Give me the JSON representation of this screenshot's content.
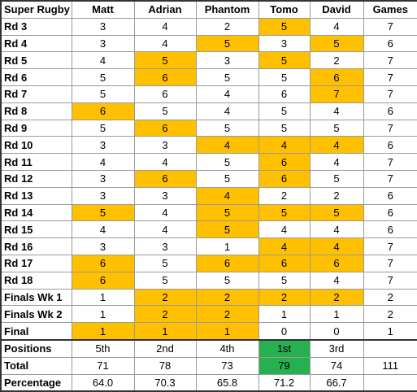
{
  "header": {
    "corner": "Super Rugby",
    "players": [
      "Matt",
      "Adrian",
      "Phantom",
      "Tomo",
      "David"
    ],
    "games": "Games"
  },
  "colors": {
    "highlight": "#ffc000",
    "winner": "#27b050"
  },
  "rounds": [
    {
      "label": "Rd 3",
      "scores": [
        "3",
        "4",
        "2",
        "5",
        "4"
      ],
      "hl": [
        false,
        false,
        false,
        true,
        false
      ],
      "games": "7"
    },
    {
      "label": "Rd 4",
      "scores": [
        "3",
        "4",
        "5",
        "3",
        "5"
      ],
      "hl": [
        false,
        false,
        true,
        false,
        true
      ],
      "games": "6"
    },
    {
      "label": "Rd 5",
      "scores": [
        "4",
        "5",
        "3",
        "5",
        "2"
      ],
      "hl": [
        false,
        true,
        false,
        true,
        false
      ],
      "games": "7"
    },
    {
      "label": "Rd 6",
      "scores": [
        "5",
        "6",
        "5",
        "5",
        "6"
      ],
      "hl": [
        false,
        true,
        false,
        false,
        true
      ],
      "games": "7"
    },
    {
      "label": "Rd 7",
      "scores": [
        "5",
        "6",
        "4",
        "6",
        "7"
      ],
      "hl": [
        false,
        false,
        false,
        false,
        true
      ],
      "games": "7"
    },
    {
      "label": "Rd 8",
      "scores": [
        "6",
        "5",
        "4",
        "5",
        "4"
      ],
      "hl": [
        true,
        false,
        false,
        false,
        false
      ],
      "games": "6"
    },
    {
      "label": "Rd 9",
      "scores": [
        "5",
        "6",
        "5",
        "5",
        "5"
      ],
      "hl": [
        false,
        true,
        false,
        false,
        false
      ],
      "games": "7"
    },
    {
      "label": "Rd 10",
      "scores": [
        "3",
        "3",
        "4",
        "4",
        "4"
      ],
      "hl": [
        false,
        false,
        true,
        true,
        true
      ],
      "games": "6"
    },
    {
      "label": "Rd 11",
      "scores": [
        "4",
        "4",
        "5",
        "6",
        "4"
      ],
      "hl": [
        false,
        false,
        false,
        true,
        false
      ],
      "games": "7"
    },
    {
      "label": "Rd 12",
      "scores": [
        "3",
        "6",
        "5",
        "6",
        "5"
      ],
      "hl": [
        false,
        true,
        false,
        true,
        false
      ],
      "games": "7"
    },
    {
      "label": "Rd 13",
      "scores": [
        "3",
        "3",
        "4",
        "2",
        "2"
      ],
      "hl": [
        false,
        false,
        true,
        false,
        false
      ],
      "games": "6"
    },
    {
      "label": "Rd 14",
      "scores": [
        "5",
        "4",
        "5",
        "5",
        "5"
      ],
      "hl": [
        true,
        false,
        true,
        true,
        true
      ],
      "games": "6"
    },
    {
      "label": "Rd 15",
      "scores": [
        "4",
        "4",
        "5",
        "4",
        "4"
      ],
      "hl": [
        false,
        false,
        true,
        false,
        false
      ],
      "games": "6"
    },
    {
      "label": "Rd 16",
      "scores": [
        "3",
        "3",
        "1",
        "4",
        "4"
      ],
      "hl": [
        false,
        false,
        false,
        true,
        true
      ],
      "games": "7"
    },
    {
      "label": "Rd 17",
      "scores": [
        "6",
        "5",
        "6",
        "6",
        "6"
      ],
      "hl": [
        true,
        false,
        true,
        true,
        true
      ],
      "games": "7"
    },
    {
      "label": "Rd 18",
      "scores": [
        "6",
        "5",
        "5",
        "5",
        "4"
      ],
      "hl": [
        true,
        false,
        false,
        false,
        false
      ],
      "games": "7"
    },
    {
      "label": "Finals Wk 1",
      "scores": [
        "1",
        "2",
        "2",
        "2",
        "2"
      ],
      "hl": [
        false,
        true,
        true,
        true,
        true
      ],
      "games": "2"
    },
    {
      "label": "Finals Wk 2",
      "scores": [
        "1",
        "2",
        "2",
        "1",
        "1"
      ],
      "hl": [
        false,
        true,
        true,
        false,
        false
      ],
      "games": "2"
    },
    {
      "label": "Final",
      "scores": [
        "1",
        "1",
        "1",
        "0",
        "0"
      ],
      "hl": [
        true,
        true,
        true,
        false,
        false
      ],
      "games": "1"
    }
  ],
  "summary": {
    "positions": {
      "label": "Positions",
      "values": [
        "5th",
        "2nd",
        "4th",
        "1st",
        "3rd"
      ],
      "win": [
        false,
        false,
        false,
        true,
        false
      ],
      "games": ""
    },
    "total": {
      "label": "Total",
      "values": [
        "71",
        "78",
        "73",
        "79",
        "74"
      ],
      "win": [
        false,
        false,
        false,
        true,
        false
      ],
      "games": "111"
    },
    "percentage": {
      "label": "Percentage",
      "values": [
        "64.0",
        "70.3",
        "65.8",
        "71.2",
        "66.7"
      ],
      "win": [
        false,
        false,
        false,
        false,
        false
      ],
      "games": ""
    }
  }
}
